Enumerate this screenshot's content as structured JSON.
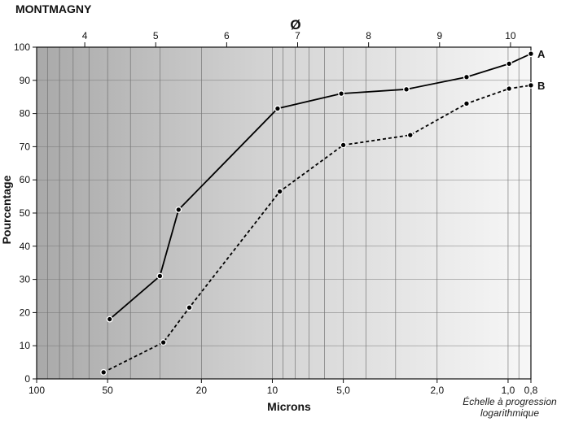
{
  "chart_data": {
    "type": "line",
    "title": "MONTMAGNY",
    "top_axis_label": "Ø",
    "top_ticks": [
      "4",
      "5",
      "6",
      "7",
      "8",
      "9",
      "10"
    ],
    "xlabel": "Microns",
    "ylabel": "Pourcentage",
    "x_scale": "log",
    "x_reversed": true,
    "xlim": [
      100,
      0.8
    ],
    "ylim": [
      0,
      100
    ],
    "yticks": [
      0,
      10,
      20,
      30,
      40,
      50,
      60,
      70,
      80,
      90,
      100
    ],
    "xticks": [
      {
        "value": 100,
        "label": "100"
      },
      {
        "value": 50,
        "label": "50"
      },
      {
        "value": 20,
        "label": "20"
      },
      {
        "value": 10,
        "label": "10"
      },
      {
        "value": 5,
        "label": "5,0"
      },
      {
        "value": 2,
        "label": "2,0"
      },
      {
        "value": 1,
        "label": "1,0"
      },
      {
        "value": 0.8,
        "label": "0,8"
      }
    ],
    "scale_note_line1": "Échelle à progression",
    "scale_note_line2": "logarithmique",
    "series": [
      {
        "name": "A",
        "style": "solid",
        "points": [
          {
            "x": 49,
            "y": 18
          },
          {
            "x": 30,
            "y": 31
          },
          {
            "x": 25,
            "y": 51
          },
          {
            "x": 9.5,
            "y": 81.5
          },
          {
            "x": 5.1,
            "y": 86
          },
          {
            "x": 2.7,
            "y": 87.3
          },
          {
            "x": 1.5,
            "y": 91
          },
          {
            "x": 0.99,
            "y": 95
          },
          {
            "x": 0.8,
            "y": 98
          }
        ]
      },
      {
        "name": "B",
        "style": "dashed",
        "points": [
          {
            "x": 52,
            "y": 2
          },
          {
            "x": 29,
            "y": 11
          },
          {
            "x": 22.5,
            "y": 21.5
          },
          {
            "x": 9.3,
            "y": 56.5
          },
          {
            "x": 5,
            "y": 70.5
          },
          {
            "x": 2.6,
            "y": 73.5
          },
          {
            "x": 1.5,
            "y": 83
          },
          {
            "x": 0.99,
            "y": 87.5
          },
          {
            "x": 0.8,
            "y": 88.5
          }
        ]
      }
    ]
  }
}
